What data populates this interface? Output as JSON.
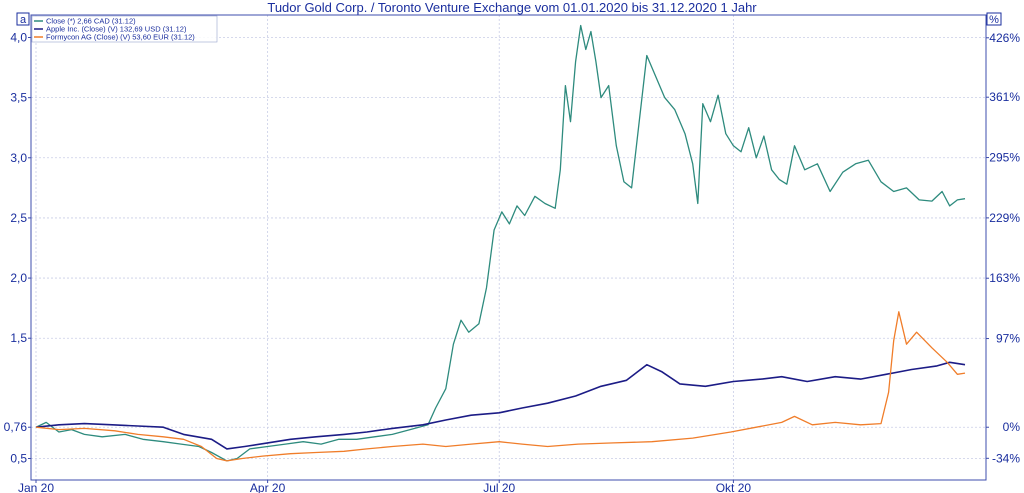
{
  "header": {
    "title": "Tudor Gold Corp.  / Toronto Venture Exchange vom 01.01.2020 bis 31.12.2020 1 Jahr",
    "left_corner_label": "a",
    "right_corner_label": "%"
  },
  "chart_data": {
    "type": "line",
    "title": "Tudor Gold Corp.  / Toronto Venture Exchange vom 01.01.2020 bis 31.12.2020 1 Jahr",
    "x_range": [
      "2020-01-01",
      "2020-12-31"
    ],
    "x_ticks": [
      {
        "date": "2020-01-01",
        "label": "Jan 20"
      },
      {
        "date": "2020-04-01",
        "label": "Apr 20"
      },
      {
        "date": "2020-07-01",
        "label": "Jul 20"
      },
      {
        "date": "2020-10-01",
        "label": "Okt 20"
      }
    ],
    "y_left": {
      "range": [
        0.46,
        4.12
      ],
      "ticks": [
        {
          "value": 0.5,
          "label": "0,5"
        },
        {
          "value": 0.76,
          "label": "0,76"
        },
        {
          "value": 1.5,
          "label": "1,5"
        },
        {
          "value": 2.0,
          "label": "2,0"
        },
        {
          "value": 2.5,
          "label": "2,5"
        },
        {
          "value": 3.0,
          "label": "3,0"
        },
        {
          "value": 3.5,
          "label": "3,5"
        },
        {
          "value": 4.0,
          "label": "4,0"
        }
      ]
    },
    "y_right": {
      "ticks": [
        {
          "value": -34,
          "label": "-34%"
        },
        {
          "value": 0,
          "label": "0%"
        },
        {
          "value": 97,
          "label": "97%"
        },
        {
          "value": 163,
          "label": "163%"
        },
        {
          "value": 229,
          "label": "229%"
        },
        {
          "value": 295,
          "label": "295%"
        },
        {
          "value": 361,
          "label": "361%"
        },
        {
          "value": 426,
          "label": "426%"
        }
      ]
    },
    "grid": true,
    "legend_position": "top-left",
    "series": [
      {
        "name": "Close (*) 2,66 CAD (31.12)",
        "color": "#2e8b7e",
        "points": [
          [
            "2020-01-01",
            0.76
          ],
          [
            "2020-01-05",
            0.8
          ],
          [
            "2020-01-10",
            0.72
          ],
          [
            "2020-01-15",
            0.74
          ],
          [
            "2020-01-20",
            0.7
          ],
          [
            "2020-01-27",
            0.68
          ],
          [
            "2020-02-05",
            0.7
          ],
          [
            "2020-02-12",
            0.66
          ],
          [
            "2020-02-20",
            0.64
          ],
          [
            "2020-02-27",
            0.62
          ],
          [
            "2020-03-05",
            0.6
          ],
          [
            "2020-03-10",
            0.55
          ],
          [
            "2020-03-16",
            0.48
          ],
          [
            "2020-03-20",
            0.5
          ],
          [
            "2020-03-25",
            0.58
          ],
          [
            "2020-04-01",
            0.6
          ],
          [
            "2020-04-08",
            0.62
          ],
          [
            "2020-04-15",
            0.64
          ],
          [
            "2020-04-22",
            0.62
          ],
          [
            "2020-04-29",
            0.66
          ],
          [
            "2020-05-06",
            0.66
          ],
          [
            "2020-05-13",
            0.68
          ],
          [
            "2020-05-20",
            0.7
          ],
          [
            "2020-05-27",
            0.74
          ],
          [
            "2020-06-03",
            0.78
          ],
          [
            "2020-06-06",
            0.92
          ],
          [
            "2020-06-10",
            1.08
          ],
          [
            "2020-06-13",
            1.45
          ],
          [
            "2020-06-16",
            1.65
          ],
          [
            "2020-06-19",
            1.55
          ],
          [
            "2020-06-23",
            1.62
          ],
          [
            "2020-06-26",
            1.92
          ],
          [
            "2020-06-29",
            2.4
          ],
          [
            "2020-07-02",
            2.55
          ],
          [
            "2020-07-05",
            2.45
          ],
          [
            "2020-07-08",
            2.6
          ],
          [
            "2020-07-11",
            2.52
          ],
          [
            "2020-07-15",
            2.68
          ],
          [
            "2020-07-19",
            2.62
          ],
          [
            "2020-07-23",
            2.58
          ],
          [
            "2020-07-25",
            2.9
          ],
          [
            "2020-07-27",
            3.6
          ],
          [
            "2020-07-29",
            3.3
          ],
          [
            "2020-07-31",
            3.8
          ],
          [
            "2020-08-02",
            4.1
          ],
          [
            "2020-08-04",
            3.9
          ],
          [
            "2020-08-06",
            4.05
          ],
          [
            "2020-08-08",
            3.8
          ],
          [
            "2020-08-10",
            3.5
          ],
          [
            "2020-08-13",
            3.6
          ],
          [
            "2020-08-16",
            3.1
          ],
          [
            "2020-08-19",
            2.8
          ],
          [
            "2020-08-22",
            2.75
          ],
          [
            "2020-08-25",
            3.3
          ],
          [
            "2020-08-28",
            3.85
          ],
          [
            "2020-08-31",
            3.7
          ],
          [
            "2020-09-04",
            3.5
          ],
          [
            "2020-09-08",
            3.4
          ],
          [
            "2020-09-12",
            3.2
          ],
          [
            "2020-09-15",
            2.95
          ],
          [
            "2020-09-17",
            2.62
          ],
          [
            "2020-09-19",
            3.45
          ],
          [
            "2020-09-22",
            3.3
          ],
          [
            "2020-09-25",
            3.52
          ],
          [
            "2020-09-28",
            3.2
          ],
          [
            "2020-10-01",
            3.1
          ],
          [
            "2020-10-04",
            3.05
          ],
          [
            "2020-10-07",
            3.25
          ],
          [
            "2020-10-10",
            3.0
          ],
          [
            "2020-10-13",
            3.18
          ],
          [
            "2020-10-16",
            2.9
          ],
          [
            "2020-10-19",
            2.82
          ],
          [
            "2020-10-22",
            2.78
          ],
          [
            "2020-10-25",
            3.1
          ],
          [
            "2020-10-29",
            2.9
          ],
          [
            "2020-11-03",
            2.95
          ],
          [
            "2020-11-08",
            2.72
          ],
          [
            "2020-11-13",
            2.88
          ],
          [
            "2020-11-18",
            2.95
          ],
          [
            "2020-11-23",
            2.98
          ],
          [
            "2020-11-28",
            2.8
          ],
          [
            "2020-12-03",
            2.72
          ],
          [
            "2020-12-08",
            2.75
          ],
          [
            "2020-12-13",
            2.65
          ],
          [
            "2020-12-18",
            2.64
          ],
          [
            "2020-12-22",
            2.72
          ],
          [
            "2020-12-25",
            2.6
          ],
          [
            "2020-12-28",
            2.65
          ],
          [
            "2020-12-31",
            2.66
          ]
        ]
      },
      {
        "name": "Apple Inc. (Close) (V) 132,69 USD (31.12)",
        "color": "#1c1c86",
        "points": [
          [
            "2020-01-01",
            0.76
          ],
          [
            "2020-01-10",
            0.78
          ],
          [
            "2020-01-20",
            0.79
          ],
          [
            "2020-01-31",
            0.78
          ],
          [
            "2020-02-10",
            0.77
          ],
          [
            "2020-02-20",
            0.76
          ],
          [
            "2020-02-28",
            0.7
          ],
          [
            "2020-03-10",
            0.66
          ],
          [
            "2020-03-16",
            0.58
          ],
          [
            "2020-03-23",
            0.6
          ],
          [
            "2020-04-01",
            0.63
          ],
          [
            "2020-04-10",
            0.66
          ],
          [
            "2020-04-20",
            0.68
          ],
          [
            "2020-05-01",
            0.7
          ],
          [
            "2020-05-10",
            0.72
          ],
          [
            "2020-05-20",
            0.75
          ],
          [
            "2020-06-01",
            0.78
          ],
          [
            "2020-06-10",
            0.82
          ],
          [
            "2020-06-20",
            0.86
          ],
          [
            "2020-07-01",
            0.88
          ],
          [
            "2020-07-10",
            0.92
          ],
          [
            "2020-07-20",
            0.96
          ],
          [
            "2020-07-31",
            1.02
          ],
          [
            "2020-08-10",
            1.1
          ],
          [
            "2020-08-20",
            1.15
          ],
          [
            "2020-08-28",
            1.28
          ],
          [
            "2020-09-03",
            1.22
          ],
          [
            "2020-09-10",
            1.12
          ],
          [
            "2020-09-20",
            1.1
          ],
          [
            "2020-10-01",
            1.14
          ],
          [
            "2020-10-12",
            1.16
          ],
          [
            "2020-10-20",
            1.18
          ],
          [
            "2020-10-30",
            1.14
          ],
          [
            "2020-11-10",
            1.18
          ],
          [
            "2020-11-20",
            1.16
          ],
          [
            "2020-11-30",
            1.2
          ],
          [
            "2020-12-10",
            1.24
          ],
          [
            "2020-12-20",
            1.27
          ],
          [
            "2020-12-25",
            1.3
          ],
          [
            "2020-12-31",
            1.28
          ]
        ]
      },
      {
        "name": "Formycon AG (Close) (V) 53,60 EUR (31.12)",
        "color": "#f07d2a",
        "points": [
          [
            "2020-01-01",
            0.76
          ],
          [
            "2020-01-10",
            0.74
          ],
          [
            "2020-01-20",
            0.75
          ],
          [
            "2020-02-01",
            0.73
          ],
          [
            "2020-02-10",
            0.7
          ],
          [
            "2020-02-20",
            0.68
          ],
          [
            "2020-02-28",
            0.66
          ],
          [
            "2020-03-06",
            0.6
          ],
          [
            "2020-03-12",
            0.5
          ],
          [
            "2020-03-16",
            0.48
          ],
          [
            "2020-03-22",
            0.5
          ],
          [
            "2020-03-30",
            0.52
          ],
          [
            "2020-04-10",
            0.54
          ],
          [
            "2020-04-20",
            0.55
          ],
          [
            "2020-05-01",
            0.56
          ],
          [
            "2020-05-10",
            0.58
          ],
          [
            "2020-05-20",
            0.6
          ],
          [
            "2020-06-01",
            0.62
          ],
          [
            "2020-06-10",
            0.6
          ],
          [
            "2020-06-20",
            0.62
          ],
          [
            "2020-07-01",
            0.64
          ],
          [
            "2020-07-10",
            0.62
          ],
          [
            "2020-07-20",
            0.6
          ],
          [
            "2020-08-01",
            0.62
          ],
          [
            "2020-08-15",
            0.63
          ],
          [
            "2020-08-30",
            0.64
          ],
          [
            "2020-09-15",
            0.67
          ],
          [
            "2020-09-30",
            0.72
          ],
          [
            "2020-10-10",
            0.76
          ],
          [
            "2020-10-20",
            0.8
          ],
          [
            "2020-10-25",
            0.85
          ],
          [
            "2020-11-01",
            0.78
          ],
          [
            "2020-11-10",
            0.8
          ],
          [
            "2020-11-20",
            0.78
          ],
          [
            "2020-11-28",
            0.79
          ],
          [
            "2020-12-01",
            1.05
          ],
          [
            "2020-12-03",
            1.48
          ],
          [
            "2020-12-05",
            1.72
          ],
          [
            "2020-12-08",
            1.45
          ],
          [
            "2020-12-12",
            1.55
          ],
          [
            "2020-12-18",
            1.42
          ],
          [
            "2020-12-24",
            1.3
          ],
          [
            "2020-12-28",
            1.2
          ],
          [
            "2020-12-31",
            1.21
          ]
        ]
      }
    ]
  }
}
